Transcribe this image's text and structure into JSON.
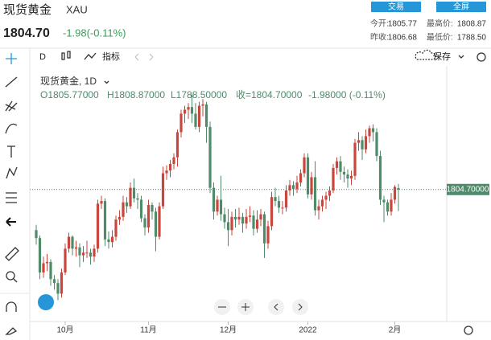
{
  "header": {
    "name": "现货黄金",
    "symbol": "XAU",
    "price": "1804.70",
    "change": "-1.98(-0.11%)",
    "buttons": [
      "交易",
      "全屏"
    ],
    "stats": [
      [
        "今开:",
        "1805.77"
      ],
      [
        "最高价:",
        "1808.87"
      ],
      [
        "昨收:",
        "1806.68"
      ],
      [
        "最低价:",
        "1788.50"
      ]
    ]
  },
  "toolbar": {
    "interval": "D",
    "indicators": "指标",
    "save": "保存"
  },
  "chart_data": {
    "type": "candlestick",
    "title": "现货黄金, 1D",
    "legend": [
      "O1805.77000",
      "H1808.87000",
      "L1788.50000",
      "收=1804.70000",
      "-1.98000 (-0.11%)"
    ],
    "up_color": "#c8463d",
    "down_color": "#4f8a6b",
    "ylim": [
      1708,
      1892
    ],
    "price_line": {
      "value": 1804.7,
      "label": "1804.70000"
    },
    "x_labels": [
      "10月",
      "11月",
      "12月",
      "2022",
      "2月"
    ],
    "candles": [
      [
        1774,
        1778,
        1763,
        1768
      ],
      [
        1768,
        1770,
        1737,
        1742
      ],
      [
        1742,
        1754,
        1738,
        1749
      ],
      [
        1749,
        1756,
        1743,
        1750
      ],
      [
        1750,
        1752,
        1732,
        1737
      ],
      [
        1737,
        1740,
        1729,
        1734
      ],
      [
        1734,
        1737,
        1721,
        1726
      ],
      [
        1726,
        1745,
        1723,
        1742
      ],
      [
        1742,
        1764,
        1740,
        1760
      ],
      [
        1760,
        1772,
        1757,
        1769
      ],
      [
        1769,
        1770,
        1755,
        1760
      ],
      [
        1760,
        1766,
        1754,
        1761
      ],
      [
        1761,
        1764,
        1746,
        1755
      ],
      [
        1755,
        1762,
        1750,
        1757
      ],
      [
        1757,
        1766,
        1753,
        1757
      ],
      [
        1757,
        1760,
        1748,
        1754
      ],
      [
        1754,
        1763,
        1750,
        1760
      ],
      [
        1760,
        1797,
        1757,
        1794
      ],
      [
        1794,
        1800,
        1790,
        1796
      ],
      [
        1796,
        1798,
        1762,
        1767
      ],
      [
        1767,
        1773,
        1760,
        1765
      ],
      [
        1765,
        1774,
        1761,
        1769
      ],
      [
        1769,
        1785,
        1766,
        1782
      ],
      [
        1782,
        1789,
        1778,
        1784
      ],
      [
        1784,
        1800,
        1781,
        1795
      ],
      [
        1795,
        1799,
        1787,
        1792
      ],
      [
        1792,
        1810,
        1790,
        1806
      ],
      [
        1806,
        1813,
        1795,
        1798
      ],
      [
        1798,
        1802,
        1790,
        1797
      ],
      [
        1797,
        1800,
        1780,
        1783
      ],
      [
        1783,
        1786,
        1770,
        1776
      ],
      [
        1776,
        1797,
        1772,
        1793
      ],
      [
        1793,
        1795,
        1782,
        1788
      ],
      [
        1788,
        1791,
        1758,
        1769
      ],
      [
        1769,
        1795,
        1767,
        1792
      ],
      [
        1792,
        1822,
        1790,
        1817
      ],
      [
        1817,
        1823,
        1812,
        1819
      ],
      [
        1819,
        1827,
        1814,
        1824
      ],
      [
        1824,
        1832,
        1820,
        1829
      ],
      [
        1829,
        1850,
        1822,
        1848
      ],
      [
        1848,
        1865,
        1844,
        1862
      ],
      [
        1862,
        1868,
        1855,
        1865
      ],
      [
        1865,
        1870,
        1858,
        1867
      ],
      [
        1867,
        1877,
        1855,
        1862
      ],
      [
        1862,
        1870,
        1850,
        1852
      ],
      [
        1852,
        1871,
        1848,
        1868
      ],
      [
        1868,
        1873,
        1860,
        1869
      ],
      [
        1869,
        1871,
        1840,
        1852
      ],
      [
        1852,
        1856,
        1802,
        1806
      ],
      [
        1806,
        1810,
        1782,
        1788
      ],
      [
        1788,
        1800,
        1785,
        1797
      ],
      [
        1797,
        1815,
        1781,
        1786
      ],
      [
        1786,
        1791,
        1775,
        1780
      ],
      [
        1780,
        1790,
        1762,
        1774
      ],
      [
        1774,
        1788,
        1770,
        1784
      ],
      [
        1784,
        1790,
        1776,
        1782
      ],
      [
        1782,
        1791,
        1778,
        1784
      ],
      [
        1784,
        1787,
        1772,
        1779
      ],
      [
        1779,
        1790,
        1775,
        1784
      ],
      [
        1784,
        1792,
        1780,
        1785
      ],
      [
        1785,
        1789,
        1770,
        1775
      ],
      [
        1775,
        1789,
        1772,
        1782
      ],
      [
        1782,
        1790,
        1777,
        1786
      ],
      [
        1786,
        1788,
        1753,
        1764
      ],
      [
        1764,
        1781,
        1760,
        1777
      ],
      [
        1777,
        1803,
        1774,
        1799
      ],
      [
        1799,
        1806,
        1792,
        1796
      ],
      [
        1796,
        1800,
        1787,
        1791
      ],
      [
        1791,
        1796,
        1786,
        1791
      ],
      [
        1791,
        1808,
        1788,
        1804
      ],
      [
        1804,
        1812,
        1800,
        1808
      ],
      [
        1808,
        1811,
        1800,
        1805
      ],
      [
        1805,
        1815,
        1802,
        1810
      ],
      [
        1810,
        1820,
        1807,
        1817
      ],
      [
        1817,
        1832,
        1814,
        1829
      ],
      [
        1829,
        1832,
        1798,
        1801
      ],
      [
        1801,
        1818,
        1797,
        1814
      ],
      [
        1814,
        1826,
        1785,
        1789
      ],
      [
        1789,
        1797,
        1782,
        1792
      ],
      [
        1792,
        1800,
        1788,
        1797
      ],
      [
        1797,
        1803,
        1790,
        1800
      ],
      [
        1800,
        1807,
        1796,
        1804
      ],
      [
        1804,
        1824,
        1802,
        1821
      ],
      [
        1821,
        1829,
        1816,
        1826
      ],
      [
        1826,
        1830,
        1812,
        1818
      ],
      [
        1818,
        1822,
        1810,
        1816
      ],
      [
        1816,
        1820,
        1806,
        1813
      ],
      [
        1813,
        1819,
        1808,
        1815
      ],
      [
        1815,
        1843,
        1812,
        1840
      ],
      [
        1840,
        1848,
        1834,
        1842
      ],
      [
        1842,
        1845,
        1827,
        1835
      ],
      [
        1835,
        1850,
        1832,
        1845
      ],
      [
        1845,
        1853,
        1840,
        1851
      ],
      [
        1851,
        1854,
        1841,
        1848
      ],
      [
        1848,
        1851,
        1826,
        1830
      ],
      [
        1830,
        1834,
        1793,
        1797
      ],
      [
        1797,
        1800,
        1780,
        1795
      ],
      [
        1795,
        1797,
        1785,
        1788
      ],
      [
        1788,
        1802,
        1785,
        1797
      ],
      [
        1797,
        1808,
        1794,
        1806.68
      ],
      [
        1805.77,
        1808.87,
        1788.5,
        1804.7
      ]
    ]
  }
}
